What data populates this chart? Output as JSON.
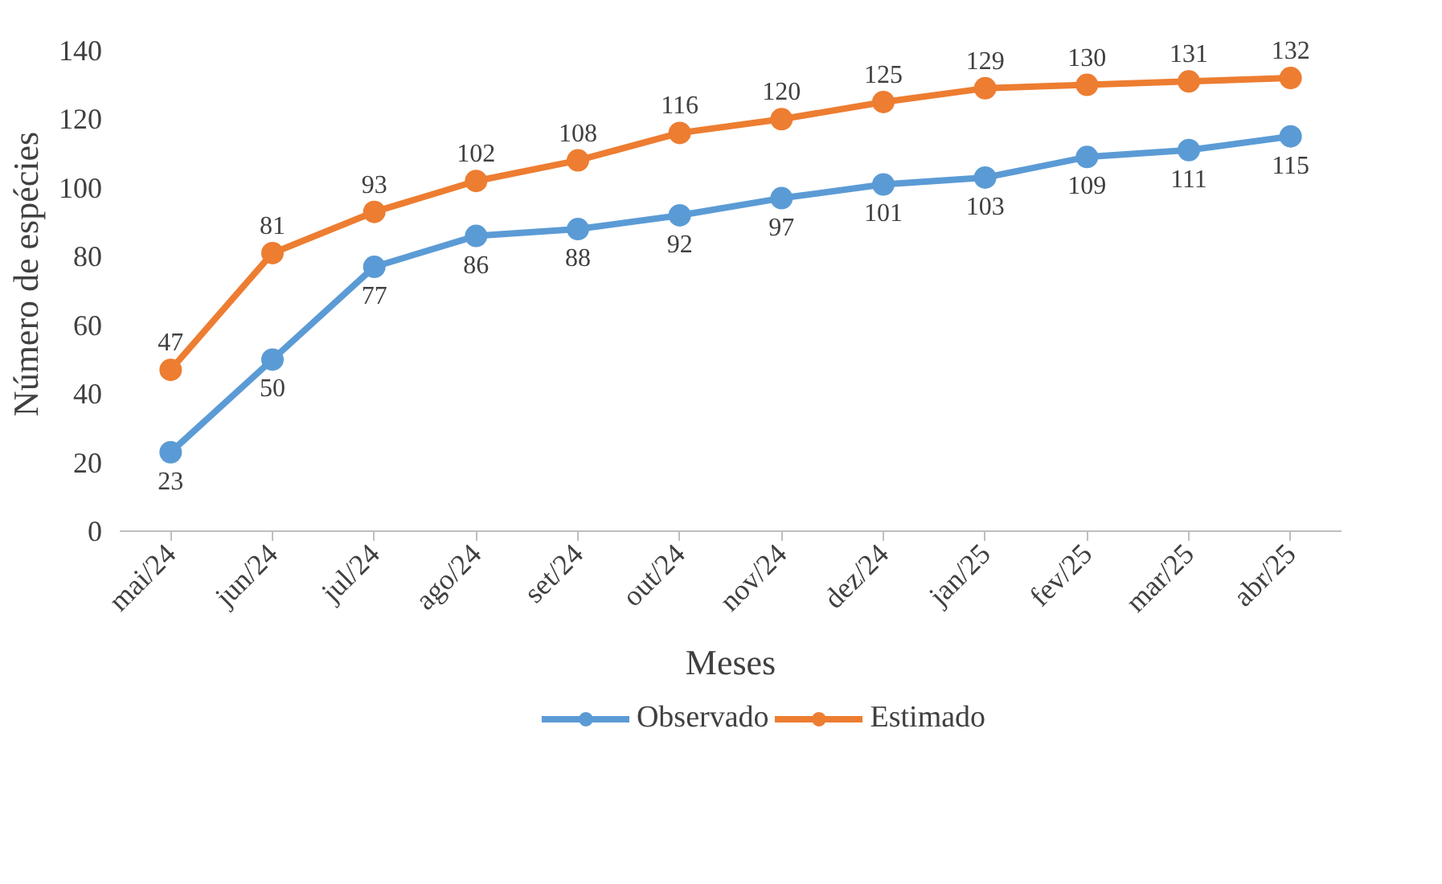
{
  "chart_data": {
    "type": "line",
    "xlabel": "Meses",
    "ylabel": "Número de espécies",
    "categories": [
      "mai/24",
      "jun/24",
      "jul/24",
      "ago/24",
      "set/24",
      "out/24",
      "nov/24",
      "dez/24",
      "jan/25",
      "fev/25",
      "mar/25",
      "abr/25"
    ],
    "series": [
      {
        "name": "Observado",
        "color": "#5b9bd5",
        "values": [
          23,
          50,
          77,
          86,
          88,
          92,
          97,
          101,
          103,
          109,
          111,
          115
        ]
      },
      {
        "name": "Estimado",
        "color": "#ed7d31",
        "values": [
          47,
          81,
          93,
          102,
          108,
          116,
          120,
          125,
          129,
          130,
          131,
          132
        ]
      }
    ],
    "ylim": [
      0,
      140
    ],
    "yticks": [
      0,
      20,
      40,
      60,
      80,
      100,
      120,
      140
    ],
    "grid": false,
    "legend": "bottom",
    "marker": "circle",
    "line_style": "solid",
    "data_labels": true
  }
}
